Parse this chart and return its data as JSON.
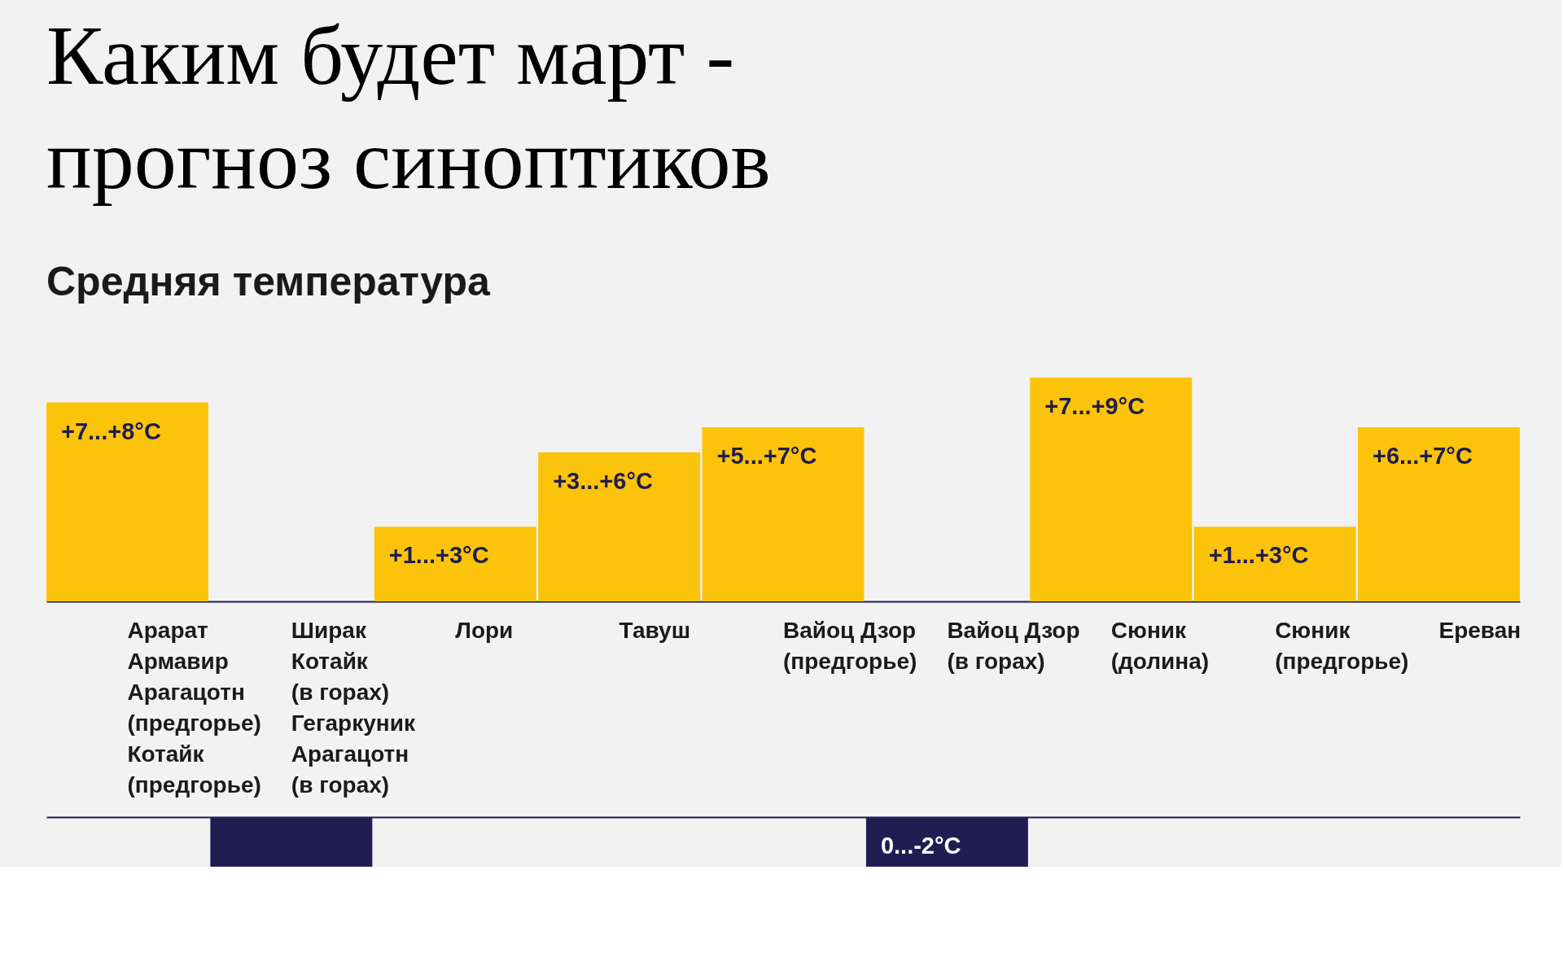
{
  "chart_data": [
    {
      "type": "bar",
      "title": "Каким будет март -\nпрогноз синоптиков",
      "subtitle": "Средняя температура",
      "color": "#fcc30b",
      "categories": [
        "Арарат\nАрмавир\nАрагацотн\n(предгорье)\nКотайк\n(предгорье)",
        "Ширак\nКотайк\n(в горах)\nГегаркуник\nАрагацотн\n(в горах)",
        "Лори",
        "Тавуш",
        "Вайоц Дзор\n(предгорье)",
        "Вайоц Дзор\n(в горах)",
        "Сюник\n(долина)",
        "Сюник\n(предгорье)",
        "Ереван"
      ],
      "values": [
        8,
        null,
        3,
        6,
        7,
        null,
        9,
        3,
        7
      ],
      "value_labels": [
        "+7...+8°C",
        null,
        "+1...+3°C",
        "+3...+6°C",
        "+5...+7°C",
        null,
        "+7...+9°C",
        "+1...+3°C",
        "+6...+7°C"
      ]
    },
    {
      "type": "bar",
      "color": "#211c52",
      "categories": [
        null,
        null,
        null,
        null,
        null,
        null,
        null,
        null,
        null
      ],
      "values": [
        null,
        -2,
        null,
        null,
        null,
        -2,
        null,
        null,
        null
      ],
      "value_labels": [
        null,
        null,
        null,
        null,
        null,
        "0...-2°C",
        null,
        null,
        null
      ]
    }
  ]
}
